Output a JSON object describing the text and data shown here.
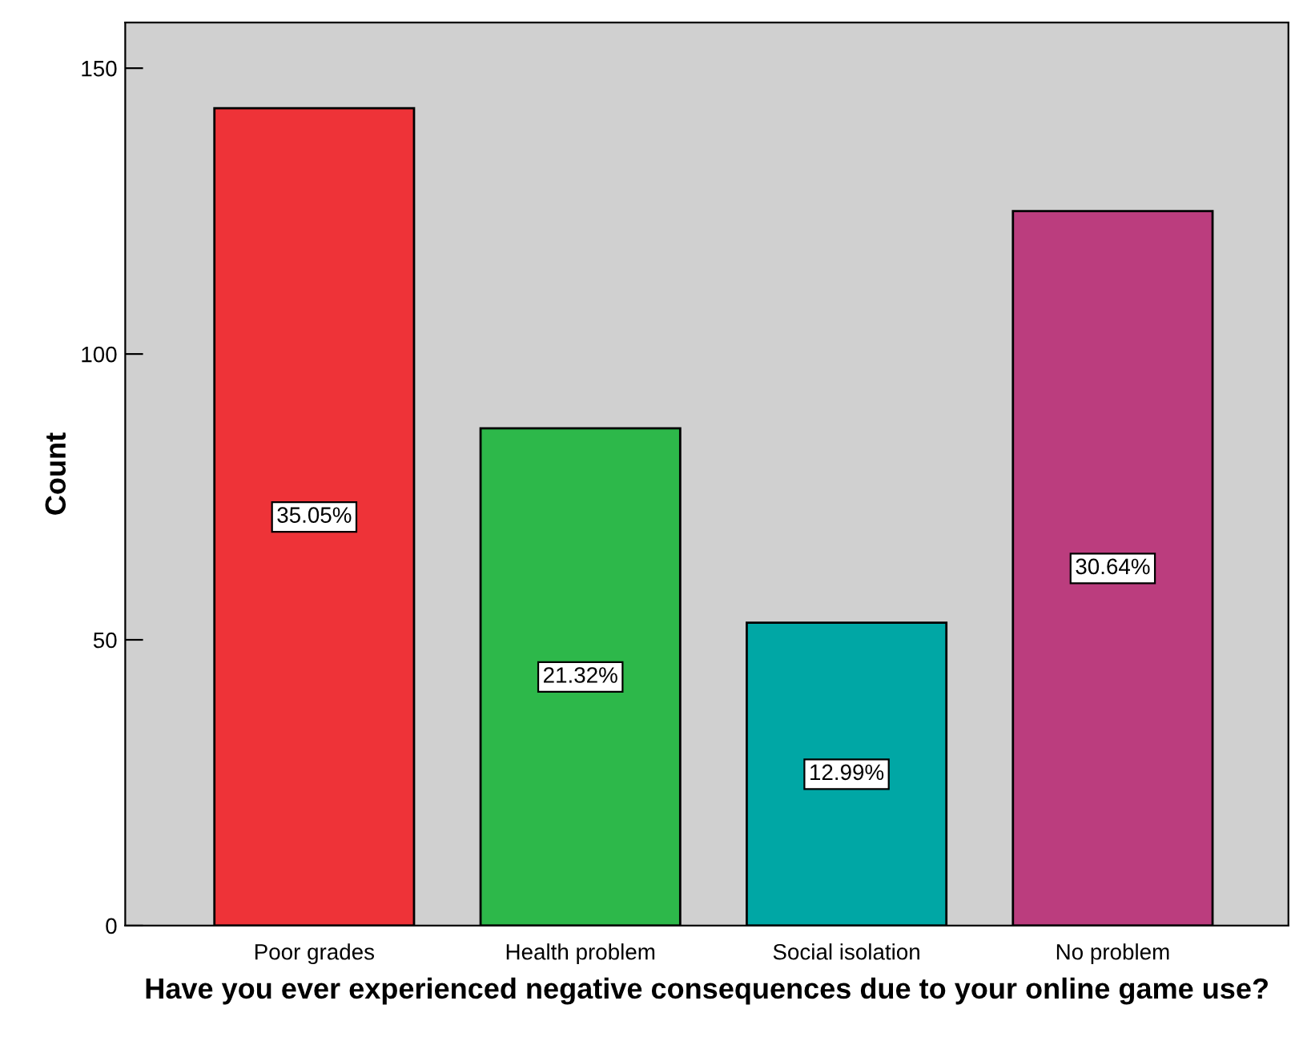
{
  "chart_data": {
    "type": "bar",
    "xlabel": "Have you ever experienced negative consequences due to your online game use?",
    "ylabel": "Count",
    "categories": [
      "Poor grades",
      "Health problem",
      "Social isolation",
      "No problem"
    ],
    "values": [
      143,
      87,
      53,
      125
    ],
    "colors": [
      "#ee3338",
      "#2db84a",
      "#00a7a5",
      "#bb3d7e"
    ],
    "annotations": [
      "35.05%",
      "21.32%",
      "12.99%",
      "30.64%"
    ],
    "ylim": [
      0,
      158
    ],
    "yticks": [
      0,
      50,
      100,
      150
    ],
    "grid": false,
    "legend": false
  }
}
